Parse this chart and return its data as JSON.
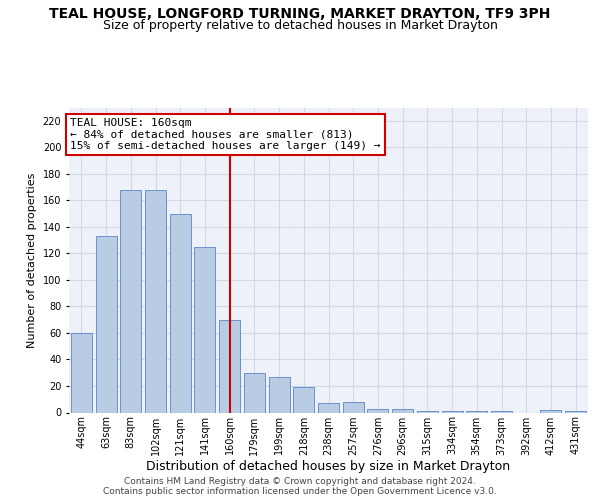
{
  "title": "TEAL HOUSE, LONGFORD TURNING, MARKET DRAYTON, TF9 3PH",
  "subtitle": "Size of property relative to detached houses in Market Drayton",
  "xlabel": "Distribution of detached houses by size in Market Drayton",
  "ylabel": "Number of detached properties",
  "categories": [
    "44sqm",
    "63sqm",
    "83sqm",
    "102sqm",
    "121sqm",
    "141sqm",
    "160sqm",
    "179sqm",
    "199sqm",
    "218sqm",
    "238sqm",
    "257sqm",
    "276sqm",
    "296sqm",
    "315sqm",
    "334sqm",
    "354sqm",
    "373sqm",
    "392sqm",
    "412sqm",
    "431sqm"
  ],
  "values": [
    60,
    133,
    168,
    168,
    150,
    125,
    70,
    30,
    27,
    19,
    7,
    8,
    3,
    3,
    1,
    1,
    1,
    1,
    0,
    2,
    1
  ],
  "bar_color": "#b8cce4",
  "bar_edge_color": "#4472c4",
  "highlight_index": 6,
  "highlight_line_color": "#cc0000",
  "annotation_text": "TEAL HOUSE: 160sqm\n← 84% of detached houses are smaller (813)\n15% of semi-detached houses are larger (149) →",
  "annotation_box_color": "#ffffff",
  "annotation_box_edge_color": "#cc0000",
  "grid_color": "#d0d8e8",
  "background_color": "#eef2f8",
  "ylim": [
    0,
    230
  ],
  "yticks": [
    0,
    20,
    40,
    60,
    80,
    100,
    120,
    140,
    160,
    180,
    200,
    220
  ],
  "footer_text": "Contains HM Land Registry data © Crown copyright and database right 2024.\nContains public sector information licensed under the Open Government Licence v3.0.",
  "title_fontsize": 10,
  "subtitle_fontsize": 9,
  "xlabel_fontsize": 9,
  "ylabel_fontsize": 8,
  "tick_fontsize": 7,
  "annotation_fontsize": 8,
  "footer_fontsize": 6.5
}
